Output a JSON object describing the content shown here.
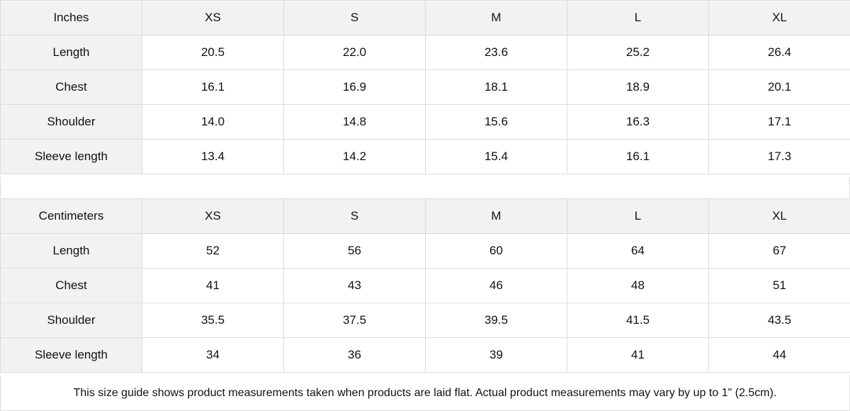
{
  "tables": [
    {
      "unit": "Inches",
      "sizes": [
        "XS",
        "S",
        "M",
        "L",
        "XL"
      ],
      "rows": [
        {
          "label": "Length",
          "values": [
            "20.5",
            "22.0",
            "23.6",
            "25.2",
            "26.4"
          ]
        },
        {
          "label": "Chest",
          "values": [
            "16.1",
            "16.9",
            "18.1",
            "18.9",
            "20.1"
          ]
        },
        {
          "label": "Shoulder",
          "values": [
            "14.0",
            "14.8",
            "15.6",
            "16.3",
            "17.1"
          ]
        },
        {
          "label": "Sleeve length",
          "values": [
            "13.4",
            "14.2",
            "15.4",
            "16.1",
            "17.3"
          ]
        }
      ]
    },
    {
      "unit": "Centimeters",
      "sizes": [
        "XS",
        "S",
        "M",
        "L",
        "XL"
      ],
      "rows": [
        {
          "label": "Length",
          "values": [
            "52",
            "56",
            "60",
            "64",
            "67"
          ]
        },
        {
          "label": "Chest",
          "values": [
            "41",
            "43",
            "46",
            "48",
            "51"
          ]
        },
        {
          "label": "Shoulder",
          "values": [
            "35.5",
            "37.5",
            "39.5",
            "41.5",
            "43.5"
          ]
        },
        {
          "label": "Sleeve length",
          "values": [
            "34",
            "36",
            "39",
            "41",
            "44"
          ]
        }
      ]
    }
  ],
  "note": "This size guide shows product measurements taken when products are laid flat.  Actual product measurements may vary by up to 1\" (2.5cm).",
  "colors": {
    "header_bg": "#f2f2f2",
    "border": "#dcdcdc",
    "text": "#111111"
  }
}
